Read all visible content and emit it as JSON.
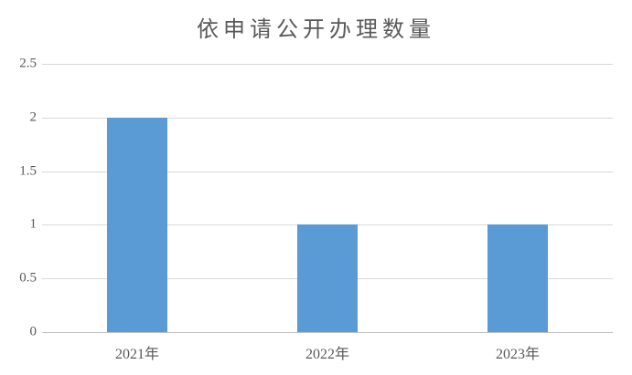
{
  "chart_data": {
    "type": "bar",
    "title": "依申请公开办理数量",
    "categories": [
      "2021年",
      "2022年",
      "2023年"
    ],
    "values": [
      2,
      1,
      1
    ],
    "xlabel": "",
    "ylabel": "",
    "ylim": [
      0,
      2.5
    ],
    "yticks": [
      0,
      0.5,
      1,
      1.5,
      2,
      2.5
    ],
    "ytick_labels": [
      "0",
      "0.5",
      "1",
      "1.5",
      "2",
      "2.5"
    ],
    "grid": true,
    "legend": false,
    "colors": {
      "bar": "#5B9BD5",
      "gridline": "#D9D9D9",
      "axis_line": "#BFBFBF",
      "text": "#595959",
      "background": "#FFFFFF"
    }
  }
}
